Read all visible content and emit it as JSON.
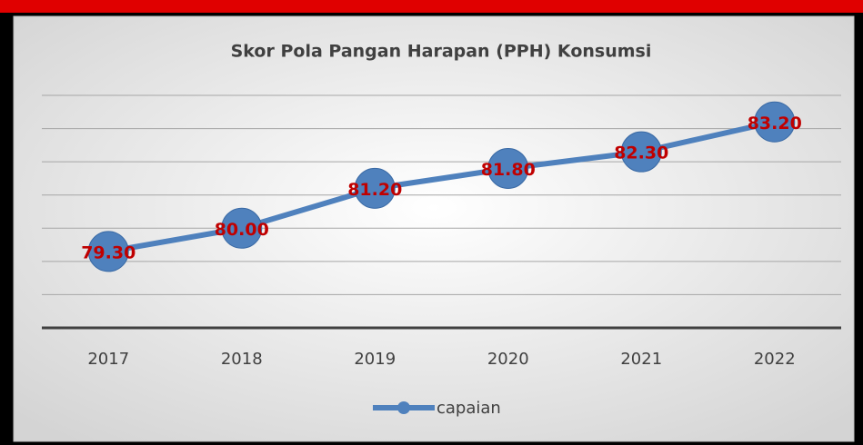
{
  "chart_data": {
    "type": "line",
    "title": "Skor Pola Pangan Harapan (PPH) Konsumsi",
    "categories": [
      "2017",
      "2018",
      "2019",
      "2020",
      "2021",
      "2022"
    ],
    "series": [
      {
        "name": "capaian",
        "color": "#4f81bd",
        "values": [
          79.3,
          80.0,
          81.2,
          81.8,
          82.3,
          83.2
        ],
        "value_labels": [
          "79.30",
          "80.00",
          "81.20",
          "81.80",
          "82.30",
          "83.20"
        ]
      }
    ],
    "label_color": "#c00000",
    "ylim": [
      77,
      84
    ],
    "yticks": [
      78,
      79,
      80,
      81,
      82,
      83,
      84
    ],
    "grid": true
  }
}
